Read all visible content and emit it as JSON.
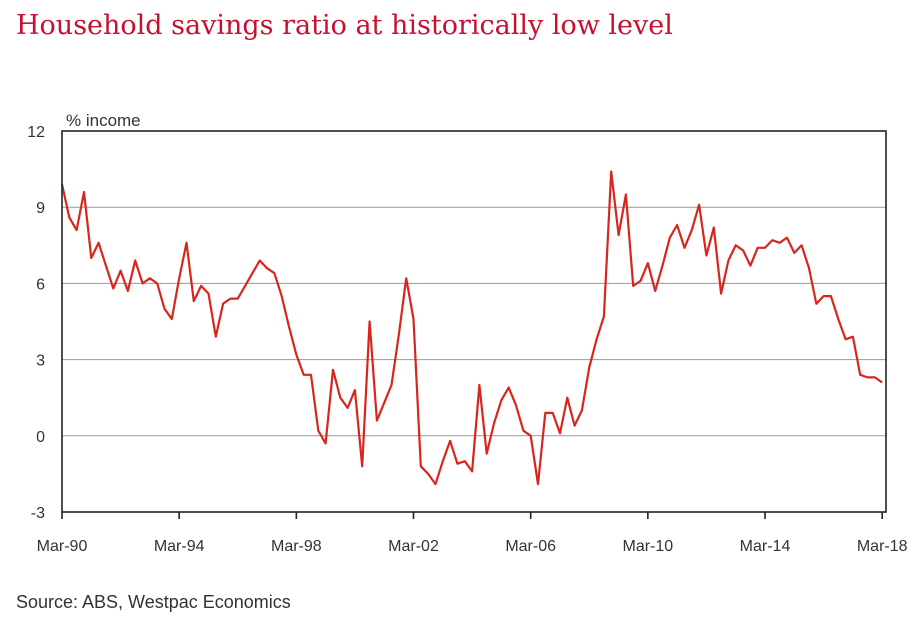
{
  "colors": {
    "title": "#c8102e",
    "series": "#d7261e",
    "grid": "#9a9a9a",
    "frame": "#222222"
  },
  "chart_data": {
    "type": "line",
    "title": "Household savings ratio at historically low level",
    "unit_label": "% income",
    "source": "Source: ABS, Westpac Economics",
    "xlabel": "",
    "ylabel": "",
    "grid": true,
    "legend": "none",
    "ylim": [
      -3,
      12
    ],
    "yticks": [
      -3,
      0,
      3,
      6,
      9,
      12
    ],
    "xlim": [
      "Mar-90",
      "Mar-18"
    ],
    "xticks": [
      "Mar-90",
      "Mar-94",
      "Mar-98",
      "Mar-02",
      "Mar-06",
      "Mar-10",
      "Mar-14",
      "Mar-18"
    ],
    "frequency": "quarterly",
    "series": [
      {
        "values": [
          9.9,
          8.6,
          8.1,
          9.6,
          7.0,
          7.6,
          6.7,
          5.8,
          6.5,
          5.7,
          6.9,
          6.0,
          6.2,
          6.0,
          5.0,
          4.6,
          6.2,
          7.6,
          5.3,
          5.9,
          5.6,
          3.9,
          5.2,
          5.4,
          5.4,
          5.9,
          6.4,
          6.9,
          6.6,
          6.4,
          5.5,
          4.3,
          3.2,
          2.4,
          2.4,
          0.2,
          -0.3,
          2.6,
          1.5,
          1.1,
          1.8,
          -1.2,
          4.5,
          0.6,
          1.3,
          2.0,
          4.0,
          6.2,
          4.6,
          -1.2,
          -1.5,
          -1.9,
          -1.0,
          -0.2,
          -1.1,
          -1.0,
          -1.4,
          2.0,
          -0.7,
          0.5,
          1.4,
          1.9,
          1.2,
          0.2,
          0.0,
          -1.9,
          0.9,
          0.9,
          0.1,
          1.5,
          0.4,
          1.0,
          2.7,
          3.8,
          4.7,
          10.4,
          7.9,
          9.5,
          5.9,
          6.1,
          6.8,
          5.7,
          6.7,
          7.8,
          8.3,
          7.4,
          8.1,
          9.1,
          7.1,
          8.2,
          5.6,
          6.9,
          7.5,
          7.3,
          6.7,
          7.4,
          7.4,
          7.7,
          7.6,
          7.8,
          7.2,
          7.5,
          6.6,
          5.2,
          5.5,
          5.5,
          4.6,
          3.8,
          3.9,
          2.4,
          2.3,
          2.3,
          2.1
        ]
      }
    ]
  }
}
